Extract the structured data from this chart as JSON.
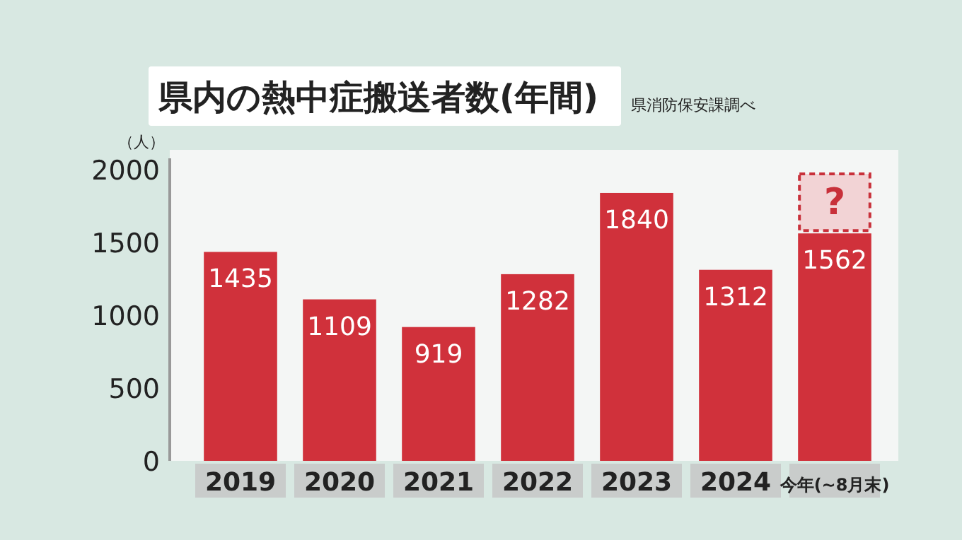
{
  "chart_data": {
    "type": "bar",
    "title": "県内の熱中症搬送者数(年間)",
    "ylabel": "（人）",
    "categories": [
      "2019",
      "2020",
      "2021",
      "2022",
      "2023",
      "2024",
      "今年(~8月末)"
    ],
    "series": [
      {
        "color": "#d0313b",
        "values": [
          1435,
          1109,
          919,
          1282,
          1840,
          1312,
          1562
        ]
      }
    ],
    "ylim": [
      0,
      2000
    ],
    "yticks": [
      0,
      500,
      1000,
      1500,
      2000
    ],
    "grid": false,
    "data_labels": true,
    "annotations": [
      "県消防保安課調べ",
      "?"
    ]
  }
}
